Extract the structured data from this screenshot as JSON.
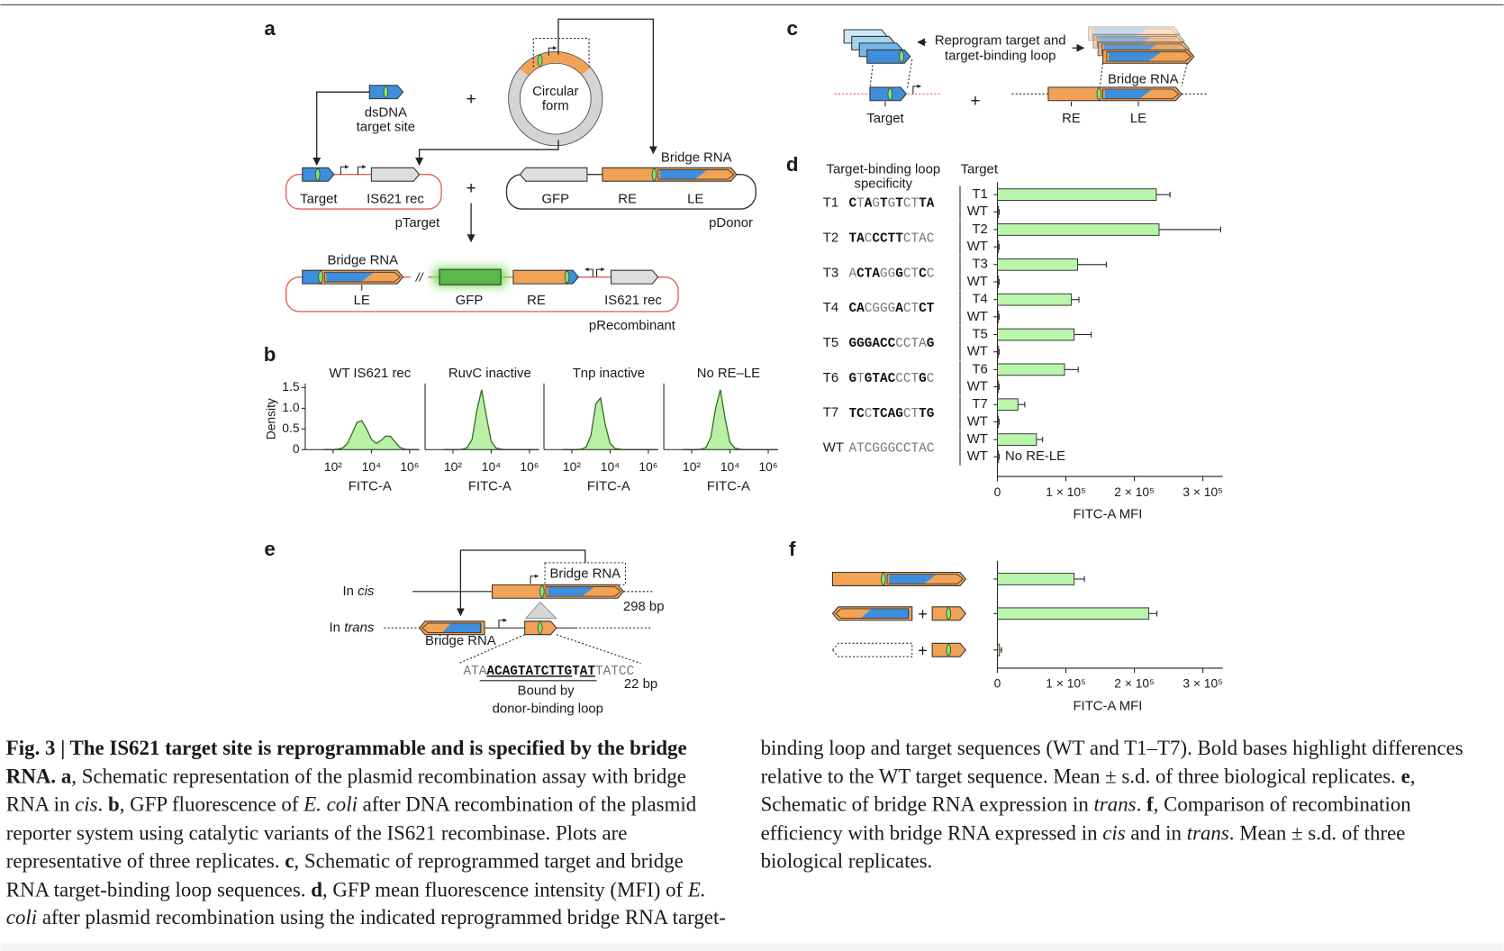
{
  "panel_a": {
    "label": "a",
    "plus": "+",
    "dsdna": [
      "dsDNA",
      "target site"
    ],
    "circular": [
      "Circular",
      "form"
    ],
    "ptarget": {
      "target": "Target",
      "rec": "IS621 rec",
      "name": "pTarget"
    },
    "pdonor": {
      "bridge_rna": "Bridge RNA",
      "gfp": "GFP",
      "re": "RE",
      "le": "LE",
      "name": "pDonor"
    },
    "precombinant": {
      "bridge_rna": "Bridge RNA",
      "le": "LE",
      "break_mark": "//",
      "gfp": "GFP",
      "re": "RE",
      "rec": "IS621 rec",
      "name": "pRecombinant"
    }
  },
  "panel_b": {
    "label": "b"
  },
  "panel_c": {
    "label": "c",
    "note": [
      "Reprogram target and",
      "target-binding loop"
    ],
    "bridge_rna": "Bridge RNA",
    "target": "Target",
    "plus": "+",
    "re": "RE",
    "le": "LE"
  },
  "panel_d": {
    "label": "d"
  },
  "panel_e": {
    "label": "e",
    "in": "In",
    "cis": "cis",
    "trans": "trans",
    "bridge_rna": "Bridge RNA",
    "length_cis": "298 bp",
    "sequence_segments": [
      {
        "text": "ATA"
      },
      {
        "text": "ACAGTATCTTG",
        "bold": true,
        "underline": true
      },
      {
        "text": "T",
        "bold": true
      },
      {
        "text": "AT",
        "bold": true,
        "underline": true
      },
      {
        "text": "TATCC"
      }
    ],
    "length_seq": "22 bp",
    "bound_by": [
      "Bound by",
      "donor-binding loop"
    ]
  },
  "panel_f": {
    "label": "f",
    "plus": "+"
  },
  "chart_data": [
    {
      "type": "area",
      "title": "WT IS621 rec",
      "xlabel": "FITC-A",
      "ylabel": "Density",
      "log_x": true,
      "color": "#b9f0a6",
      "line_color": "#2f6b22",
      "x": [
        32,
        56,
        100,
        178,
        316,
        562,
        1000,
        1778,
        3162,
        5623,
        10000,
        17783,
        31623,
        56234,
        100000,
        177828,
        316228,
        562341,
        1000000,
        1778279,
        3162278
      ],
      "values": [
        0,
        0,
        0,
        0.01,
        0.04,
        0.15,
        0.4,
        0.66,
        0.7,
        0.5,
        0.25,
        0.15,
        0.22,
        0.33,
        0.32,
        0.18,
        0.05,
        0.01,
        0,
        0,
        0
      ],
      "xlim": [
        3.5,
        3200000
      ],
      "ylim": [
        0,
        1.6
      ],
      "xticks": [
        {
          "value": 100,
          "label": "10²"
        },
        {
          "value": 10000,
          "label": "10⁴"
        },
        {
          "value": 1000000,
          "label": "10⁶"
        }
      ],
      "yticks": [
        0,
        0.5,
        {
          "value": 1,
          "label": "1.0"
        },
        1.5
      ]
    },
    {
      "type": "area",
      "title": "RuvC inactive",
      "xlabel": "FITC-A",
      "log_x": true,
      "color": "#b9f0a6",
      "line_color": "#2f6b22",
      "x": [
        32,
        56,
        100,
        178,
        316,
        562,
        1000,
        1778,
        3162,
        5623,
        10000,
        17783,
        31623,
        56234,
        100000,
        177828,
        316228,
        562341,
        1000000,
        1778279,
        3162278
      ],
      "values": [
        0,
        0,
        0,
        0,
        0.01,
        0.05,
        0.25,
        0.95,
        1.45,
        0.8,
        0.2,
        0.04,
        0.01,
        0,
        0,
        0,
        0,
        0,
        0,
        0,
        0
      ],
      "xlim": [
        3.5,
        3200000
      ],
      "ylim": [
        0,
        1.6
      ],
      "xticks": [
        {
          "value": 100,
          "label": "10²"
        },
        {
          "value": 10000,
          "label": "10⁴"
        },
        {
          "value": 1000000,
          "label": "10⁶"
        }
      ]
    },
    {
      "type": "area",
      "title": "Tnp inactive",
      "xlabel": "FITC-A",
      "log_x": true,
      "color": "#b9f0a6",
      "line_color": "#2f6b22",
      "x": [
        32,
        56,
        100,
        178,
        316,
        562,
        1000,
        1778,
        3162,
        5623,
        10000,
        17783,
        31623,
        56234,
        100000,
        177828,
        316228,
        562341,
        1000000,
        1778279,
        3162278
      ],
      "values": [
        0,
        0,
        0,
        0,
        0.01,
        0.06,
        0.35,
        1.1,
        1.25,
        0.6,
        0.15,
        0.03,
        0.01,
        0,
        0,
        0,
        0,
        0,
        0,
        0,
        0
      ],
      "xlim": [
        3.5,
        3200000
      ],
      "ylim": [
        0,
        1.6
      ],
      "xticks": [
        {
          "value": 100,
          "label": "10²"
        },
        {
          "value": 10000,
          "label": "10⁴"
        },
        {
          "value": 1000000,
          "label": "10⁶"
        }
      ]
    },
    {
      "type": "area",
      "title": "No RE–LE",
      "xlabel": "FITC-A",
      "log_x": true,
      "color": "#b9f0a6",
      "line_color": "#2f6b22",
      "x": [
        32,
        56,
        100,
        178,
        316,
        562,
        1000,
        1778,
        3162,
        5623,
        10000,
        17783,
        31623,
        56234,
        100000,
        177828,
        316228,
        562341,
        1000000,
        1778279,
        3162278
      ],
      "values": [
        0,
        0,
        0,
        0,
        0.01,
        0.05,
        0.3,
        1.0,
        1.45,
        0.75,
        0.18,
        0.04,
        0.01,
        0,
        0,
        0,
        0,
        0,
        0,
        0,
        0
      ],
      "xlim": [
        3.5,
        3200000
      ],
      "ylim": [
        0,
        1.6
      ],
      "xticks": [
        {
          "value": 100,
          "label": "10²"
        },
        {
          "value": 10000,
          "label": "10⁴"
        },
        {
          "value": 1000000,
          "label": "10⁶"
        }
      ]
    },
    {
      "type": "hbar",
      "loop_header": [
        "Target-binding loop",
        "specificity"
      ],
      "target_header": "Target",
      "xlabel": "FITC-A MFI",
      "color": "#b9f5aa",
      "loops": [
        {
          "name": "T1",
          "sequence": "CTAGTGTCTTA"
        },
        {
          "name": "T2",
          "sequence": "TACCCTTCTAC"
        },
        {
          "name": "T3",
          "sequence": "ACTAGGGCTCC"
        },
        {
          "name": "T4",
          "sequence": "CACGGGACTCT"
        },
        {
          "name": "T5",
          "sequence": "GGGACCCCTAG"
        },
        {
          "name": "T6",
          "sequence": "GTGTACCCTGC"
        },
        {
          "name": "T7",
          "sequence": "TCCTCAGCTTG"
        },
        {
          "name": "WT",
          "sequence": "ATCGGGCCTAC"
        }
      ],
      "categories": [
        "T1",
        "WT",
        "T2",
        "WT",
        "T3",
        "WT",
        "T4",
        "WT",
        "T5",
        "WT",
        "T6",
        "WT",
        "T7",
        "WT",
        "WT",
        "WT"
      ],
      "values": [
        232000,
        1500,
        236000,
        1500,
        117000,
        1500,
        108000,
        1500,
        112000,
        1500,
        98000,
        1500,
        30000,
        1500,
        57000,
        1500
      ],
      "errors": [
        20000,
        1000,
        90000,
        1000,
        42000,
        1000,
        11000,
        1000,
        25000,
        1000,
        20000,
        1000,
        10000,
        1000,
        9000,
        1000
      ],
      "annotations": [
        {
          "text": "No RE-LE"
        }
      ],
      "xlim": [
        0,
        329000
      ],
      "xticks": [
        0,
        {
          "value": 100000,
          "label": "1 × 10⁵"
        },
        {
          "value": 200000,
          "label": "2 × 10⁵"
        },
        {
          "value": 300000,
          "label": "3 × 10⁵"
        }
      ]
    },
    {
      "type": "hbar",
      "xlabel": "FITC-A MFI",
      "color": "#b9f5aa",
      "values": [
        112000,
        221000,
        3000
      ],
      "errors": [
        15000,
        12000,
        3000
      ],
      "xlim": [
        0,
        329000
      ],
      "xticks": [
        0,
        {
          "value": 100000,
          "label": "1 × 10⁵"
        },
        {
          "value": 200000,
          "label": "2 × 10⁵"
        },
        {
          "value": 300000,
          "label": "3 × 10⁵"
        }
      ]
    }
  ],
  "caption": [
    {
      "text": "Fig. 3 | The IS621 target site is reprogrammable and is specified by the bridge RNA.",
      "bold": true
    },
    {
      "text": " a",
      "bold": true
    },
    {
      "text": ", Schematic representation of the plasmid recombination assay with bridge RNA in "
    },
    {
      "text": "cis",
      "italic": true
    },
    {
      "text": ". "
    },
    {
      "text": "b",
      "bold": true
    },
    {
      "text": ", GFP fluorescence of "
    },
    {
      "text": "E. coli",
      "italic": true
    },
    {
      "text": " after DNA recombination of the plasmid reporter system using catalytic variants of the IS621 recombinase. Plots are representative of three replicates. "
    },
    {
      "text": "c",
      "bold": true
    },
    {
      "text": ", Schematic of reprogrammed target and bridge RNA target-binding loop sequences. "
    },
    {
      "text": "d",
      "bold": true
    },
    {
      "text": ", GFP mean fluorescence intensity (MFI) of "
    },
    {
      "text": "E. coli",
      "italic": true
    },
    {
      "text": " after plasmid recombination using the indicated reprogrammed bridge RNA target-binding loop and target sequences (WT and T1–T7). Bold bases highlight differences relative to the WT target sequence. Mean ± s.d. of three biological replicates. "
    },
    {
      "text": "e",
      "bold": true
    },
    {
      "text": ", Schematic of bridge RNA expression in "
    },
    {
      "text": "trans",
      "italic": true
    },
    {
      "text": ". "
    },
    {
      "text": "f",
      "bold": true
    },
    {
      "text": ", Comparison of recombination efficiency with bridge RNA expressed in "
    },
    {
      "text": "cis",
      "italic": true
    },
    {
      "text": " and in "
    },
    {
      "text": "trans",
      "italic": true
    },
    {
      "text": ". Mean ± s.d. of three biological replicates."
    }
  ]
}
